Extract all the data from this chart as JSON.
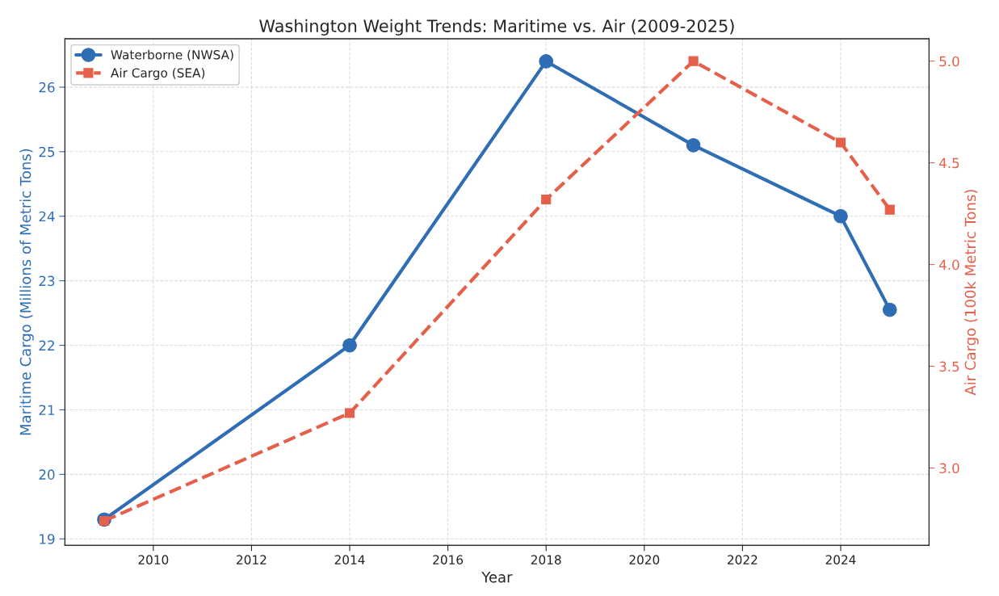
{
  "chart_data": {
    "type": "line",
    "title": "Washington Weight Trends: Maritime vs. Air (2009-2025)",
    "xlabel": "Year",
    "ylabel": "Maritime Cargo (Millions of Metric Tons)",
    "y2label": "Air Cargo (100k Metric Tons)",
    "x": [
      2009,
      2014,
      2018,
      2021,
      2024,
      2025
    ],
    "series": [
      {
        "name": "Waterborne (NWSA)",
        "color": "#2f6db5",
        "values": [
          19.3,
          22.0,
          26.4,
          25.1,
          24.0,
          22.55
        ],
        "marker": "circle",
        "line_style": "solid"
      },
      {
        "name": "Air Cargo (SEA)",
        "color": "#e5604a",
        "values": [
          2.74,
          3.27,
          4.32,
          5.0,
          4.6,
          4.27
        ],
        "marker": "square",
        "line_style": "dashed",
        "axis": "y2"
      }
    ],
    "xlim": [
      2008.2,
      2025.8
    ],
    "xticks": [
      2010,
      2012,
      2014,
      2016,
      2018,
      2020,
      2022,
      2024
    ],
    "ylim": [
      18.9,
      26.75
    ],
    "yticks": [
      19,
      20,
      21,
      22,
      23,
      24,
      25,
      26
    ],
    "y2lim": [
      2.62,
      5.11
    ],
    "y2ticks": [
      {
        "value": 3.0,
        "label": "3.0"
      },
      {
        "value": 3.5,
        "label": "3.5"
      },
      {
        "value": 4.0,
        "label": "4.0"
      },
      {
        "value": 4.5,
        "label": "4.5"
      },
      {
        "value": 5.0,
        "label": "5.0"
      }
    ],
    "grid": true,
    "legend": "top left"
  }
}
